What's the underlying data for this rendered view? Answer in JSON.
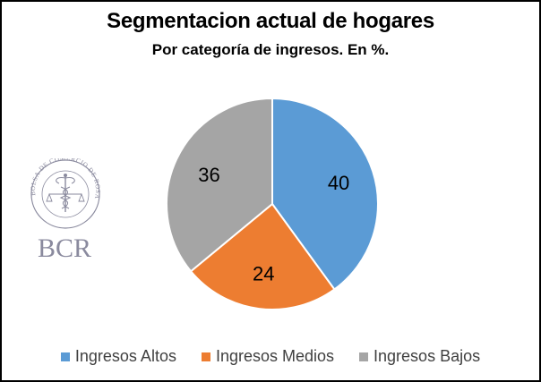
{
  "chart_data": {
    "type": "pie",
    "title": "Segmentacion actual de hogares",
    "subtitle": "Por categoría de ingresos. En %.",
    "categories": [
      "Ingresos Altos",
      "Ingresos Medios",
      "Ingresos Bajos"
    ],
    "values": [
      40,
      24,
      36
    ],
    "data_labels": [
      "40",
      "24",
      "36"
    ],
    "colors": [
      "#5b9bd5",
      "#ed7d31",
      "#a5a5a5"
    ],
    "legend_position": "bottom",
    "start_angle": "top",
    "direction": "clockwise"
  },
  "logo": {
    "seal_text": "BOLSA DE COMERCIO DE ROSARIO",
    "wordmark": "BCR",
    "color": "#8a8a9e"
  }
}
